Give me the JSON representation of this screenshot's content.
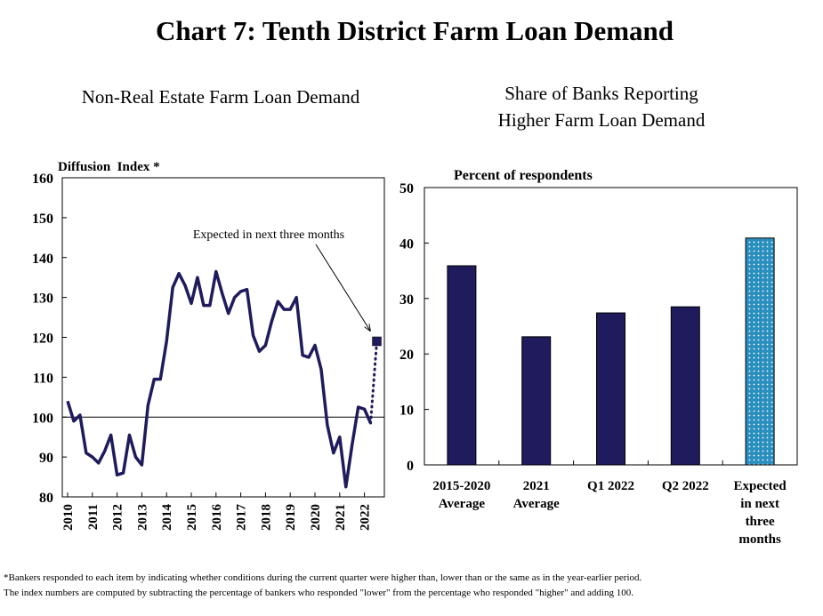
{
  "title": "Chart 7: Tenth District Farm Loan Demand",
  "footnote": [
    "*Bankers responded to each item by indicating whether conditions during the current quarter were higher than,  lower than or the same as in the year-earlier period.",
    "The index numbers are computed by subtracting the percentage of bankers who responded \"lower\" from the percentage who responded \"higher\" and adding 100."
  ],
  "chart_data": [
    {
      "type": "line",
      "title": "Non-Real Estate Farm Loan Demand",
      "ylabel": "Diffusion  Index *",
      "annotation": "Expected in next three months",
      "categories": [
        "2010",
        null,
        null,
        null,
        "2011",
        null,
        null,
        null,
        "2012",
        null,
        null,
        null,
        "2013",
        null,
        null,
        null,
        "2014",
        null,
        null,
        null,
        "2015",
        null,
        null,
        null,
        "2016",
        null,
        null,
        null,
        "2017",
        null,
        null,
        null,
        "2018",
        null,
        null,
        null,
        "2019",
        null,
        null,
        null,
        "2020",
        null,
        null,
        null,
        "2021",
        null,
        null,
        null,
        "2022",
        null,
        null
      ],
      "series": [
        {
          "color": "#1f1b5c",
          "style": "solid",
          "values": [
            104,
            99,
            100.5,
            91,
            90,
            88.5,
            91.5,
            95.5,
            85.5,
            86,
            95.5,
            90,
            88,
            103,
            109.5,
            109.5,
            119,
            132.5,
            136,
            133,
            128.5,
            135,
            128,
            128,
            136.5,
            131,
            126,
            130,
            131.5,
            132,
            120.5,
            116.5,
            118,
            124,
            129,
            127,
            127,
            130,
            115.5,
            115,
            118,
            112,
            98,
            91,
            95,
            82.5,
            93,
            102.5,
            102,
            98.5,
            null
          ]
        },
        {
          "color": "#1f1b5c",
          "style": "dotted",
          "values": [
            null,
            null,
            null,
            null,
            null,
            null,
            null,
            null,
            null,
            null,
            null,
            null,
            null,
            null,
            null,
            null,
            null,
            null,
            null,
            null,
            null,
            null,
            null,
            null,
            null,
            null,
            null,
            null,
            null,
            null,
            null,
            null,
            null,
            null,
            null,
            null,
            null,
            null,
            null,
            null,
            null,
            null,
            null,
            null,
            null,
            null,
            null,
            null,
            null,
            null,
            119
          ]
        }
      ],
      "hline": 100,
      "ylim": [
        80,
        160
      ],
      "yticks": [
        80,
        90,
        100,
        110,
        120,
        130,
        140,
        150,
        160
      ]
    },
    {
      "type": "bar",
      "title": "Share of Banks Reporting\nHigher Farm Loan Demand",
      "ylabel": "Percent of respondents",
      "categories": [
        "2015-2020\nAverage",
        "2021\nAverage",
        "Q1 2022",
        "Q2 2022",
        "Expected\nin next\nthree\nmonths"
      ],
      "values": [
        35.9,
        23.1,
        27.4,
        28.5,
        40.9
      ],
      "colors": [
        "#1f1b5c",
        "#1f1b5c",
        "#1f1b5c",
        "#1f1b5c",
        "#2a8fbf"
      ],
      "patterns": [
        null,
        null,
        null,
        null,
        "dots"
      ],
      "ylim": [
        0,
        50
      ],
      "yticks": [
        0,
        10,
        20,
        30,
        40,
        50
      ]
    }
  ]
}
